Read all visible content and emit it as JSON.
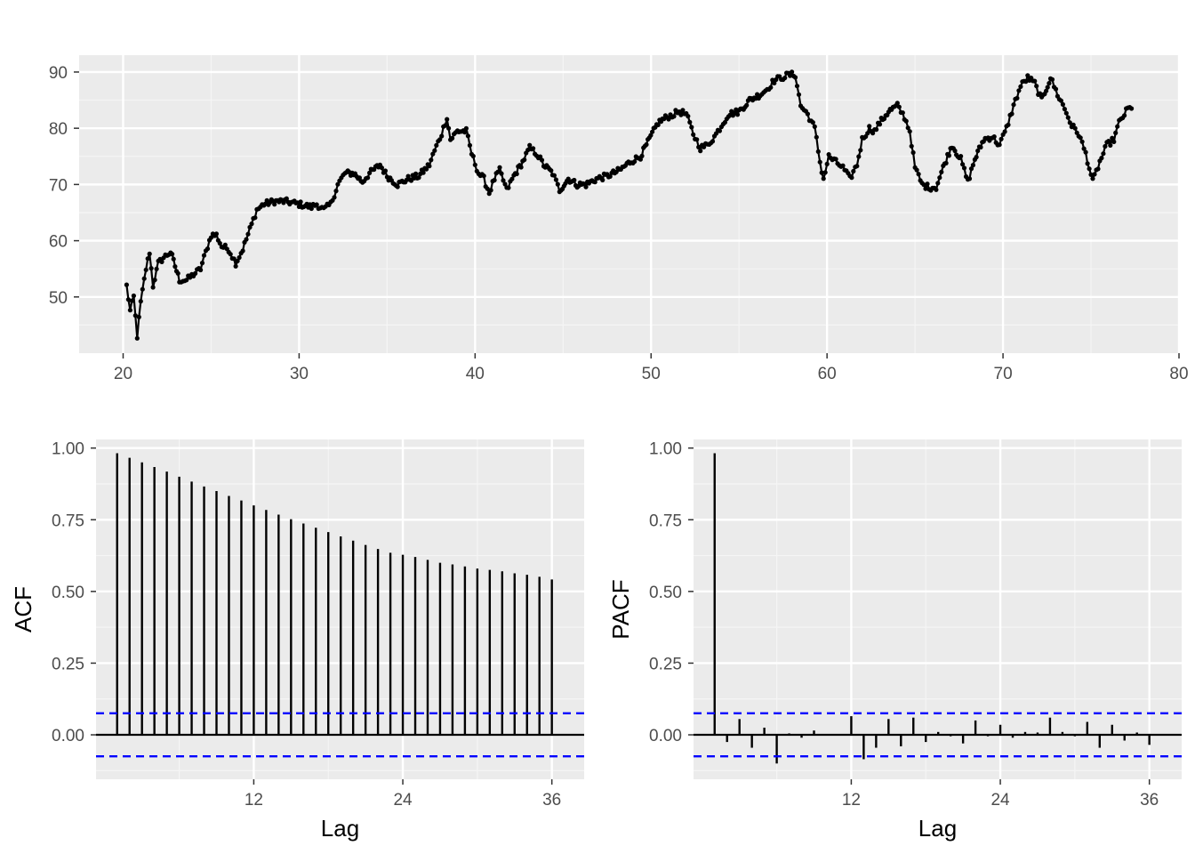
{
  "colors": {
    "panel_bg": "#EBEBEB",
    "grid_major": "#FFFFFF",
    "grid_minor": "#F5F5F5",
    "series": "#000000",
    "ci_line": "#0000FF",
    "tick_text": "#4D4D4D"
  },
  "chart_data": [
    {
      "type": "line",
      "markers": true,
      "title": "",
      "xlabel": "",
      "ylabel": "",
      "xlim": [
        17.5,
        80
      ],
      "ylim": [
        40,
        93
      ],
      "xticks": [
        20,
        30,
        40,
        50,
        60,
        70,
        80
      ],
      "yticks": [
        50,
        60,
        70,
        80,
        90
      ],
      "xtick_labels": [
        "20",
        "30",
        "40",
        "50",
        "60",
        "70",
        "80"
      ],
      "ytick_labels": [
        "50",
        "60",
        "70",
        "80",
        "90"
      ],
      "grid": true,
      "anchors": [
        [
          20.2,
          52
        ],
        [
          20.4,
          47.5
        ],
        [
          20.6,
          50
        ],
        [
          20.8,
          43
        ],
        [
          21.0,
          49
        ],
        [
          21.3,
          55
        ],
        [
          21.5,
          58
        ],
        [
          21.7,
          52
        ],
        [
          22.0,
          56
        ],
        [
          22.3,
          57
        ],
        [
          22.7,
          58
        ],
        [
          23.2,
          53
        ],
        [
          23.6,
          53
        ],
        [
          24.0,
          54
        ],
        [
          24.4,
          55
        ],
        [
          24.8,
          59
        ],
        [
          25.0,
          61
        ],
        [
          25.3,
          61
        ],
        [
          25.6,
          59
        ],
        [
          26.0,
          58.5
        ],
        [
          26.4,
          56
        ],
        [
          26.8,
          58.5
        ],
        [
          27.2,
          62
        ],
        [
          27.6,
          65.5
        ],
        [
          28.0,
          66.5
        ],
        [
          28.6,
          67
        ],
        [
          29.2,
          67
        ],
        [
          30.0,
          66.5
        ],
        [
          30.7,
          66
        ],
        [
          31.0,
          66.5
        ],
        [
          31.4,
          65.5
        ],
        [
          31.8,
          66.5
        ],
        [
          32.2,
          70
        ],
        [
          32.6,
          72
        ],
        [
          33.1,
          72
        ],
        [
          33.6,
          70.5
        ],
        [
          34.0,
          72
        ],
        [
          34.6,
          73.5
        ],
        [
          35.0,
          71.5
        ],
        [
          35.6,
          70
        ],
        [
          36.2,
          71
        ],
        [
          36.8,
          71.5
        ],
        [
          37.4,
          73.5
        ],
        [
          37.7,
          76
        ],
        [
          38.1,
          79
        ],
        [
          38.4,
          82
        ],
        [
          38.6,
          78
        ],
        [
          39.0,
          79.5
        ],
        [
          39.5,
          79.5
        ],
        [
          39.8,
          75.5
        ],
        [
          40.2,
          72
        ],
        [
          40.5,
          71
        ],
        [
          40.8,
          68.5
        ],
        [
          41.1,
          71
        ],
        [
          41.4,
          72.5
        ],
        [
          41.8,
          69
        ],
        [
          42.2,
          71.5
        ],
        [
          42.7,
          74
        ],
        [
          43.1,
          76.5
        ],
        [
          43.5,
          75.5
        ],
        [
          43.9,
          73.5
        ],
        [
          44.4,
          72
        ],
        [
          44.8,
          69
        ],
        [
          45.3,
          71
        ],
        [
          45.8,
          70
        ],
        [
          46.3,
          70
        ],
        [
          46.9,
          71
        ],
        [
          47.5,
          71.5
        ],
        [
          48.2,
          72.5
        ],
        [
          48.8,
          74
        ],
        [
          49.4,
          75
        ],
        [
          49.9,
          78
        ],
        [
          50.4,
          81
        ],
        [
          50.9,
          82
        ],
        [
          51.3,
          82.5
        ],
        [
          51.6,
          83
        ],
        [
          52.0,
          82.5
        ],
        [
          52.4,
          79
        ],
        [
          52.8,
          76.5
        ],
        [
          53.2,
          77
        ],
        [
          53.6,
          78.5
        ],
        [
          54.0,
          80.5
        ],
        [
          54.4,
          82.5
        ],
        [
          55.0,
          83
        ],
        [
          55.6,
          85
        ],
        [
          56.2,
          86
        ],
        [
          56.6,
          87
        ],
        [
          57.0,
          88.5
        ],
        [
          57.4,
          89
        ],
        [
          57.8,
          89.5
        ],
        [
          58.2,
          89.5
        ],
        [
          58.5,
          84
        ],
        [
          58.9,
          82.5
        ],
        [
          59.3,
          80
        ],
        [
          59.6,
          74
        ],
        [
          59.8,
          71
        ],
        [
          60.1,
          75
        ],
        [
          60.5,
          74
        ],
        [
          60.9,
          73
        ],
        [
          61.3,
          71
        ],
        [
          61.7,
          73.5
        ],
        [
          62.0,
          78
        ],
        [
          62.4,
          80
        ],
        [
          62.7,
          79.5
        ],
        [
          63.0,
          81
        ],
        [
          63.5,
          83
        ],
        [
          64.0,
          84
        ],
        [
          64.4,
          82
        ],
        [
          64.7,
          79.5
        ],
        [
          65.0,
          73
        ],
        [
          65.4,
          70
        ],
        [
          65.8,
          69.5
        ],
        [
          66.2,
          69.5
        ],
        [
          66.6,
          73
        ],
        [
          67.1,
          77
        ],
        [
          67.6,
          74.5
        ],
        [
          68.0,
          70.5
        ],
        [
          68.4,
          74.5
        ],
        [
          68.9,
          78
        ],
        [
          69.4,
          78.5
        ],
        [
          69.8,
          77
        ],
        [
          70.2,
          80
        ],
        [
          70.6,
          84
        ],
        [
          71.0,
          87.5
        ],
        [
          71.4,
          89
        ],
        [
          71.8,
          88
        ],
        [
          72.2,
          85
        ],
        [
          72.7,
          89
        ],
        [
          73.1,
          86
        ],
        [
          73.5,
          83.5
        ],
        [
          73.9,
          80.5
        ],
        [
          74.3,
          79
        ],
        [
          74.7,
          75.5
        ],
        [
          75.1,
          70.5
        ],
        [
          75.5,
          74
        ],
        [
          75.9,
          77
        ],
        [
          76.3,
          78
        ],
        [
          76.6,
          81
        ],
        [
          76.9,
          82.5
        ],
        [
          77.1,
          83.5
        ],
        [
          77.3,
          83.5
        ]
      ]
    },
    {
      "type": "bar",
      "subtype": "acf",
      "xlabel": "Lag",
      "ylabel": "ACF",
      "xlim": [
        -0.7,
        38.6
      ],
      "ylim": [
        -0.155,
        1.03
      ],
      "xticks": [
        12,
        24,
        36
      ],
      "yticks": [
        0,
        0.25,
        0.5,
        0.75,
        1.0
      ],
      "xtick_labels": [
        "12",
        "24",
        "36"
      ],
      "ytick_labels": [
        "0.00",
        "0.25",
        "0.50",
        "0.75",
        "1.00"
      ],
      "ci": 0.075,
      "lags": [
        1,
        2,
        3,
        4,
        5,
        6,
        7,
        8,
        9,
        10,
        11,
        12,
        13,
        14,
        15,
        16,
        17,
        18,
        19,
        20,
        21,
        22,
        23,
        24,
        25,
        26,
        27,
        28,
        29,
        30,
        31,
        32,
        33,
        34,
        35,
        36
      ],
      "values": [
        0.982,
        0.966,
        0.95,
        0.934,
        0.918,
        0.9,
        0.883,
        0.866,
        0.85,
        0.833,
        0.817,
        0.8,
        0.784,
        0.768,
        0.752,
        0.737,
        0.722,
        0.707,
        0.692,
        0.677,
        0.662,
        0.648,
        0.635,
        0.628,
        0.62,
        0.61,
        0.6,
        0.594,
        0.587,
        0.58,
        0.575,
        0.57,
        0.563,
        0.558,
        0.551,
        0.542
      ]
    },
    {
      "type": "bar",
      "subtype": "pacf",
      "xlabel": "Lag",
      "ylabel": "PACF",
      "xlim": [
        -0.7,
        38.6
      ],
      "ylim": [
        -0.155,
        1.03
      ],
      "xticks": [
        12,
        24,
        36
      ],
      "yticks": [
        0,
        0.25,
        0.5,
        0.75,
        1.0
      ],
      "xtick_labels": [
        "12",
        "24",
        "36"
      ],
      "ytick_labels": [
        "0.00",
        "0.25",
        "0.50",
        "0.75",
        "1.00"
      ],
      "ci": 0.075,
      "lags": [
        1,
        2,
        3,
        4,
        5,
        6,
        7,
        8,
        9,
        10,
        11,
        12,
        13,
        14,
        15,
        16,
        17,
        18,
        19,
        20,
        21,
        22,
        23,
        24,
        25,
        26,
        27,
        28,
        29,
        30,
        31,
        32,
        33,
        34,
        35,
        36
      ],
      "values": [
        0.982,
        -0.025,
        0.055,
        -0.045,
        0.025,
        -0.1,
        0.005,
        -0.01,
        0.015,
        0.003,
        -0.003,
        0.065,
        -0.085,
        -0.045,
        0.055,
        -0.04,
        0.06,
        -0.025,
        0.01,
        -0.005,
        -0.03,
        0.05,
        -0.005,
        0.035,
        -0.01,
        0.01,
        0.008,
        0.06,
        0.01,
        -0.005,
        0.045,
        -0.045,
        0.035,
        -0.02,
        0.008,
        -0.035
      ]
    }
  ]
}
